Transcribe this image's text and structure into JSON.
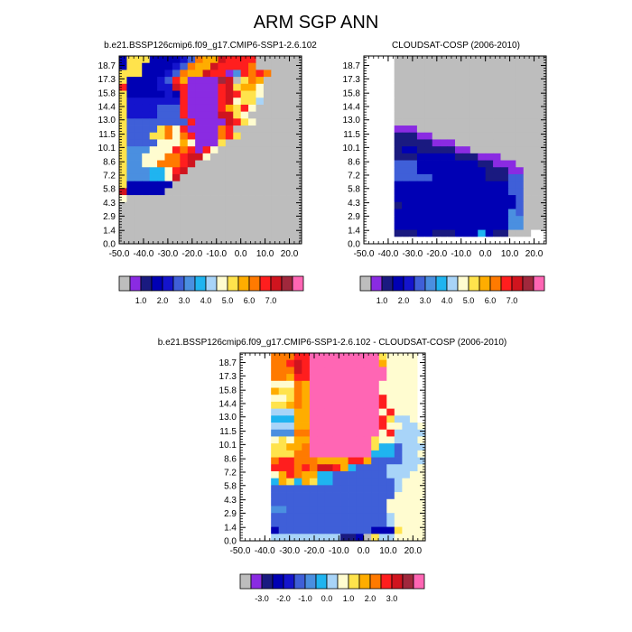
{
  "main_title": "ARM SGP ANN",
  "chart_data": [
    {
      "type": "heatmap",
      "title": "b.e21.BSSP126cmip6.f09_g17.CMIP6-SSP1-2.6.102",
      "x_ticks": [
        "-50.0",
        "-40.0",
        "-30.0",
        "-20.0",
        "-10.0",
        "0.0",
        "10.0",
        "20.0"
      ],
      "y_ticks": [
        "0.0",
        "1.4",
        "2.9",
        "4.3",
        "5.8",
        "7.2",
        "8.6",
        "10.1",
        "11.5",
        "13.0",
        "14.4",
        "15.8",
        "17.3",
        "18.7"
      ],
      "xlim": [
        -50,
        25
      ],
      "ylim": [
        0,
        19.7
      ],
      "colorbar_labels": [
        "1.0",
        "2.0",
        "3.0",
        "4.0",
        "5.0",
        "6.0",
        "7.0"
      ],
      "palette": [
        "#bdbdbd",
        "#8a2be2",
        "#1a1a80",
        "#0000b4",
        "#1414cd",
        "#3f5fd8",
        "#4a8fe0",
        "#1fb4f0",
        "#a8d4f8",
        "#fffcd0",
        "#ffe34c",
        "#ffad00",
        "#ff7a00",
        "#ff1e1e",
        "#d0141e",
        "#a0283c",
        "#ff66b4"
      ],
      "rows_top_down": [
        "3AAA333345CBBEDDDD000000",
        "3AA333345CBBEDDDDC000000",
        "AAA33345CBBEDD16DCDC0000",
        "A333345DB1111FE0ACB00000",
        "D333344ED1111DEABB900000",
        "A3333343D1111DEDAA900000",
        "A4444444D1111DE9AA800000",
        "A4444555D1111DBAD9000000",
        "A4444555D1111EEA90000000",
        "A55555555D1111EDA9000000",
        "A5555AC9D1111CD000000000",
        "A555AAC9CD111CDA00000000",
        "A5555999B9111A0000000000",
        "A666999DCD1D900000000000",
        "A66999CCDEE9000000000000",
        "A6699CCCDE00000000000000",
        "A666779DE000000000000000",
        "A666779E0000000000000000",
        "A33333300000000000000000",
        "E33333000000000000000000",
        "90000000000000000000000000",
        "00000000000000000000000000",
        "00000000000000000000000000",
        "00000000000000000000000000",
        "00000000000000000000000000",
        "00000000000000000000000000",
        "00000000000000000000000000"
      ]
    },
    {
      "type": "heatmap",
      "title": "CLOUDSAT-COSP (2006-2010)",
      "x_ticks": [
        "-50.0",
        "-40.0",
        "-30.0",
        "-20.0",
        "-10.0",
        "0.0",
        "10.0",
        "20.0"
      ],
      "y_ticks": [
        "0.0",
        "1.4",
        "2.9",
        "4.3",
        "5.8",
        "7.2",
        "8.6",
        "10.1",
        "11.5",
        "13.0",
        "14.4",
        "15.8",
        "17.3",
        "18.7"
      ],
      "xlim": [
        -50,
        25
      ],
      "ylim": [
        0,
        19.7
      ],
      "colorbar_labels": [
        "1.0",
        "2.0",
        "3.0",
        "4.0",
        "5.0",
        "6.0",
        "7.0"
      ],
      "palette": [
        "#bdbdbd",
        "#8a2be2",
        "#1a1a80",
        "#0000b4",
        "#1414cd",
        "#3f5fd8",
        "#4a8fe0",
        "#1fb4f0",
        "#a8d4f8",
        "#fffcd0",
        "#ffe34c",
        "#ffad00",
        "#ff7a00",
        "#ff1e1e",
        "#d0141e",
        "#a0283c",
        "#ff66b4"
      ],
      "rows_top_down": [
        "WWWW00000000000000000000",
        "WWWW00000000000000000000",
        "WWWW00000000000000000000",
        "WWWW00000000000000000000",
        "WWWW00000000000000000000",
        "WWWW00000000000000000000",
        "WWWW00000000000000000000",
        "WWWW00000000000000000000",
        "WWWW00000000000000000000",
        "WWWW00000000000000000000",
        "WWWW11100000000000000000",
        "WWWW22211000000000000000",
        "WWWW22222111000000000000",
        "WWWW23322222110000000000",
        "WWWW22233333222111000000",
        "WWWW55533333333221110000",
        "WWWW55533333333322211000",
        "WWWW55555333333322255000",
        "WWWW33333333333333355000",
        "WWWW33333333333333355000",
        "WWWW33333333333333335000",
        "WWWW23333333333333335000",
        "WWWW33333333333333365000",
        "WWWW33333333333333366000",
        "WWWW33333333333333366000",
        "WWWW222332223337322000WW",
        "WWWWWWWWWWWWWWWWWWWWWWWW"
      ]
    },
    {
      "type": "heatmap",
      "title": "b.e21.BSSP126cmip6.f09_g17.CMIP6-SSP1-2.6.102 - CLOUDSAT-COSP (2006-2010)",
      "x_ticks": [
        "-50.0",
        "-40.0",
        "-30.0",
        "-20.0",
        "-10.0",
        "0.0",
        "10.0",
        "20.0"
      ],
      "y_ticks": [
        "0.0",
        "1.4",
        "2.9",
        "4.3",
        "5.8",
        "7.2",
        "8.6",
        "10.1",
        "11.5",
        "13.0",
        "14.4",
        "15.8",
        "17.3",
        "18.7"
      ],
      "xlim": [
        -50,
        25
      ],
      "ylim": [
        0,
        19.7
      ],
      "colorbar_labels": [
        "-3.0",
        "-2.0",
        "-1.0",
        "0.0",
        "1.0",
        "2.0",
        "3.0"
      ],
      "palette": [
        "#bdbdbd",
        "#8a2be2",
        "#1a1a80",
        "#0000b4",
        "#1414cd",
        "#3f5fd8",
        "#4a8fe0",
        "#1fb4f0",
        "#a8d4f8",
        "#fffcd0",
        "#ffe34c",
        "#ffad00",
        "#ff7a00",
        "#ff1e1e",
        "#d0141e",
        "#a0283c",
        "#ff66b4"
      ],
      "rows_top_down": [
        "WWWWCCCDDGGGGGGGGGA9999W",
        "WWWWCCDEDGGGGGGGGGB9999W",
        "WWWWCCCEDGGGGGGGGGG9999W",
        "WWWWCCBDDGGGGGGGGGG9999W",
        "WWWW999CBGGGGGGGGG99999W",
        "WWWWBAACBGGGGGGGGG99999W",
        "WWWW99ACBGGGGGGGGGD9999W",
        "WWWWAABCBGGGGGGGGGD9999W",
        "WWWW888BBGGGGGGGGG9D999W",
        "WWWW777BBGGGGGGGGGDA889W",
        "WWWW888BBGGGGGGGGGD99889W",
        "WWWW666CCGGGGGGGGG9D88889",
        "WWWW9A9BBGGGGGGGGA998889W",
        "WWWWAABBCGGGGGGGGA7758889",
        "WWWWAAACCGGGGGGGG77758899",
        "WWWWCDDCCCBBBBDDB555588899",
        "WWWWDDDCDCEEDB75555888899",
        "WWWW9BDCBB77555555588899",
        "WWWW7BA7BA77555555558999",
        "WWWW55555555555555558999",
        "WWWW55555555555555559999",
        "WWWW55555555555555599999",
        "WWWW66555555555555599999",
        "WWWW55555555555555589999",
        "WWWW55555555555555589999",
        "WWWW3555555555555333A999",
        "WWWW8888888882230A889999"
      ]
    }
  ]
}
